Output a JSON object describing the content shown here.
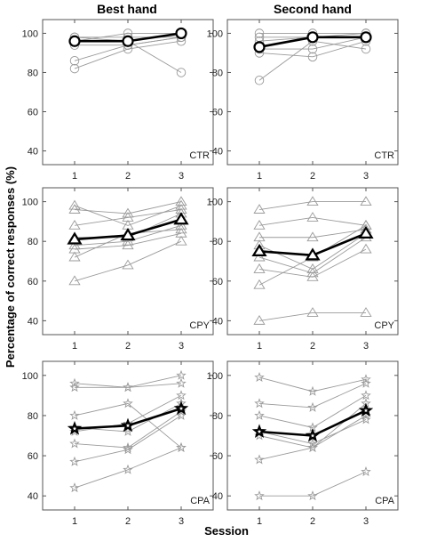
{
  "figure": {
    "col_titles": [
      "Best hand",
      "Second hand"
    ],
    "ylabel": "Percentage of correct responses (%)",
    "xlabel": "Session"
  },
  "chart_data": [
    {
      "type": "line",
      "title": "Best hand",
      "tag": "CTR",
      "marker": "circle",
      "x": [
        1,
        2,
        3
      ],
      "xticks": [
        "1",
        "2",
        "3"
      ],
      "xlim": [
        0.4,
        3.6
      ],
      "ylim": [
        33,
        107
      ],
      "yticks": [
        40,
        60,
        80,
        100
      ],
      "series": [
        {
          "role": "individual",
          "values": [
            98,
            98,
            98
          ]
        },
        {
          "role": "individual",
          "values": [
            96,
            100,
            100
          ]
        },
        {
          "role": "individual",
          "values": [
            94,
            94,
            98
          ]
        },
        {
          "role": "individual",
          "values": [
            86,
            94,
            98
          ]
        },
        {
          "role": "individual",
          "values": [
            82,
            92,
            96
          ]
        },
        {
          "role": "individual",
          "values": [
            98,
            96,
            80
          ]
        },
        {
          "role": "mean",
          "values": [
            96,
            96,
            100
          ]
        }
      ]
    },
    {
      "type": "line",
      "title": "Second hand",
      "tag": "CTR",
      "marker": "circle",
      "x": [
        1,
        2,
        3
      ],
      "xticks": [
        "1",
        "2",
        "3"
      ],
      "xlim": [
        0.4,
        3.6
      ],
      "ylim": [
        33,
        107
      ],
      "yticks": [
        40,
        60,
        80,
        100
      ],
      "series": [
        {
          "role": "individual",
          "values": [
            100,
            100,
            100
          ]
        },
        {
          "role": "individual",
          "values": [
            98,
            98,
            100
          ]
        },
        {
          "role": "individual",
          "values": [
            96,
            98,
            98
          ]
        },
        {
          "role": "individual",
          "values": [
            92,
            92,
            98
          ]
        },
        {
          "role": "individual",
          "values": [
            90,
            88,
            96
          ]
        },
        {
          "role": "individual",
          "values": [
            76,
            96,
            92
          ]
        },
        {
          "role": "mean",
          "values": [
            93,
            98,
            98
          ]
        }
      ]
    },
    {
      "type": "line",
      "title": "",
      "tag": "CPY",
      "marker": "triangle",
      "x": [
        1,
        2,
        3
      ],
      "xticks": [
        "1",
        "2",
        "3"
      ],
      "xlim": [
        0.4,
        3.6
      ],
      "ylim": [
        33,
        107
      ],
      "yticks": [
        40,
        60,
        80,
        100
      ],
      "series": [
        {
          "role": "individual",
          "values": [
            98,
            88,
            98
          ]
        },
        {
          "role": "individual",
          "values": [
            96,
            94,
            100
          ]
        },
        {
          "role": "individual",
          "values": [
            88,
            92,
            96
          ]
        },
        {
          "role": "individual",
          "values": [
            82,
            82,
            94
          ]
        },
        {
          "role": "individual",
          "values": [
            78,
            80,
            88
          ]
        },
        {
          "role": "individual",
          "values": [
            76,
            78,
            84
          ]
        },
        {
          "role": "individual",
          "values": [
            72,
            84,
            86
          ]
        },
        {
          "role": "individual",
          "values": [
            60,
            68,
            80
          ]
        },
        {
          "role": "mean",
          "values": [
            81,
            83,
            91
          ]
        }
      ]
    },
    {
      "type": "line",
      "title": "",
      "tag": "CPY",
      "marker": "triangle",
      "x": [
        1,
        2,
        3
      ],
      "xticks": [
        "1",
        "2",
        "3"
      ],
      "xlim": [
        0.4,
        3.6
      ],
      "ylim": [
        33,
        107
      ],
      "yticks": [
        40,
        60,
        80,
        100
      ],
      "series": [
        {
          "role": "individual",
          "values": [
            96,
            100,
            100
          ]
        },
        {
          "role": "individual",
          "values": [
            88,
            92,
            88
          ]
        },
        {
          "role": "individual",
          "values": [
            82,
            82,
            86
          ]
        },
        {
          "role": "individual",
          "values": [
            78,
            66,
            84
          ]
        },
        {
          "role": "individual",
          "values": [
            72,
            64,
            82
          ]
        },
        {
          "role": "individual",
          "values": [
            66,
            62,
            76
          ]
        },
        {
          "role": "individual",
          "values": [
            58,
            72,
            88
          ]
        },
        {
          "role": "individual",
          "values": [
            40,
            44,
            44
          ]
        },
        {
          "role": "mean",
          "values": [
            75,
            73,
            84
          ]
        }
      ]
    },
    {
      "type": "line",
      "title": "",
      "tag": "CPA",
      "marker": "star",
      "x": [
        1,
        2,
        3
      ],
      "xticks": [
        "1",
        "2",
        "3"
      ],
      "xlim": [
        0.4,
        3.6
      ],
      "ylim": [
        33,
        107
      ],
      "yticks": [
        40,
        60,
        80,
        100
      ],
      "series": [
        {
          "role": "individual",
          "values": [
            96,
            94,
            100
          ]
        },
        {
          "role": "individual",
          "values": [
            94,
            94,
            96
          ]
        },
        {
          "role": "individual",
          "values": [
            80,
            86,
            64
          ]
        },
        {
          "role": "individual",
          "values": [
            74,
            72,
            86
          ]
        },
        {
          "role": "individual",
          "values": [
            72,
            76,
            90
          ]
        },
        {
          "role": "individual",
          "values": [
            66,
            64,
            82
          ]
        },
        {
          "role": "individual",
          "values": [
            57,
            63,
            80
          ]
        },
        {
          "role": "individual",
          "values": [
            44,
            53,
            64
          ]
        },
        {
          "role": "mean",
          "values": [
            73.5,
            75,
            83.5
          ]
        }
      ]
    },
    {
      "type": "line",
      "title": "",
      "tag": "CPA",
      "marker": "star",
      "x": [
        1,
        2,
        3
      ],
      "xticks": [
        "1",
        "2",
        "3"
      ],
      "xlim": [
        0.4,
        3.6
      ],
      "ylim": [
        33,
        107
      ],
      "yticks": [
        40,
        60,
        80,
        100
      ],
      "series": [
        {
          "role": "individual",
          "values": [
            99,
            92,
            98
          ]
        },
        {
          "role": "individual",
          "values": [
            86,
            84,
            96
          ]
        },
        {
          "role": "individual",
          "values": [
            80,
            74,
            90
          ]
        },
        {
          "role": "individual",
          "values": [
            72,
            66,
            78
          ]
        },
        {
          "role": "individual",
          "values": [
            70,
            64,
            80
          ]
        },
        {
          "role": "individual",
          "values": [
            58,
            64,
            86
          ]
        },
        {
          "role": "individual",
          "values": [
            40,
            40,
            52
          ]
        },
        {
          "role": "mean",
          "values": [
            72,
            70,
            82.5
          ]
        }
      ]
    }
  ]
}
